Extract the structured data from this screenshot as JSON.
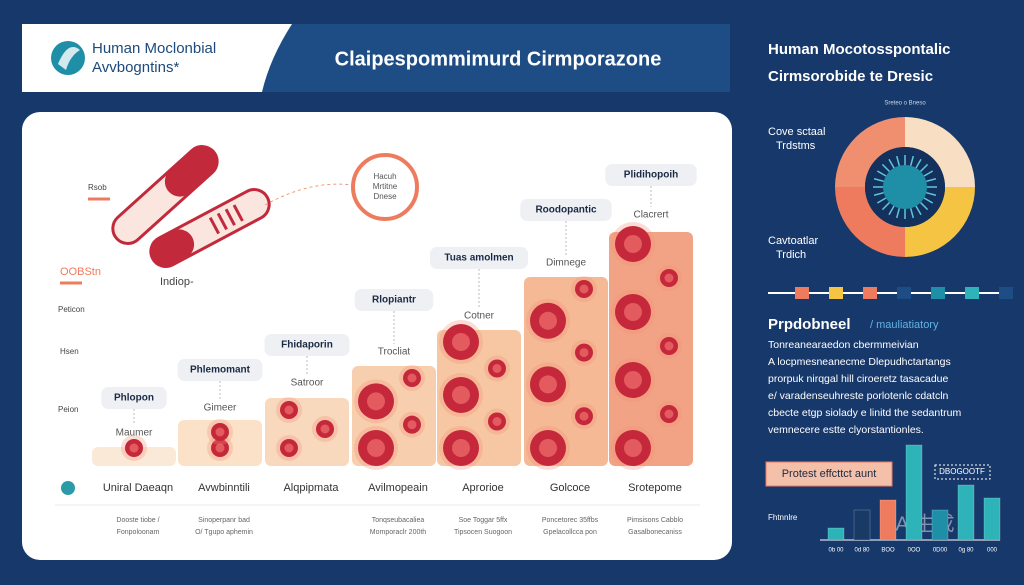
{
  "header": {
    "logo_line1": "Human Moclonbial",
    "logo_line2": "Avvbogntins*",
    "title": "Claipespommimurd Cirmporazone"
  },
  "panel": {
    "side_labels": [
      "Rsob",
      "OOBStn",
      "Indiop-",
      "Peticon",
      "Hsen",
      "Peion"
    ],
    "circle_label": [
      "Hacuh",
      "Mrtitne",
      "Dnese"
    ],
    "columns": [
      {
        "label": "Phlopon",
        "sub": "Maumer",
        "category": "Uniral Daeaqn",
        "note": [
          "Dooste tiobe /",
          "Fonpoloonam"
        ]
      },
      {
        "label": "Phlemomant",
        "sub": "Gimeer",
        "category": "Avwbinntili",
        "note": [
          "Sinoperpanr bad",
          "O/ Tgupo aphemin"
        ]
      },
      {
        "label": "Fhidaporin",
        "sub": "Satroor",
        "category": "Alqpipmata",
        "note": [
          "",
          ""
        ]
      },
      {
        "label": "Rlopiantr",
        "sub": "Trocliat",
        "category": "Avilmopeain",
        "note": [
          "Tonqseubacaliea",
          "Momporaclr 200th"
        ]
      },
      {
        "label": "Tuas amolmen",
        "sub": "Cotner",
        "category": "Aprorioe",
        "note": [
          "Soe Toggar 5ffx",
          "Tipsocen Suogoon"
        ]
      },
      {
        "label": "Roodopantic",
        "sub": "Dimnege",
        "category": "Golcoce",
        "note": [
          "Poncetorec 35ffbs",
          "Gpelacollcca pon"
        ]
      },
      {
        "label": "Plidihopoih",
        "sub": "Clacrert",
        "category": "Srotepome",
        "note": [
          "Pimsisons Cabblo",
          "Gasalbonecaniss"
        ]
      }
    ]
  },
  "side": {
    "title": [
      "Human Mocotosspontalic",
      "Cirmsorobide te Dresic"
    ],
    "donut_top": "Sreteo o Bneso",
    "donut_label1": [
      "Cove sctaal",
      "Trdstms"
    ],
    "donut_label2": [
      "Cavtoatlar",
      "Trdich"
    ],
    "section_title": "Prpdobneel",
    "section_tag": "/ mauliatiatory",
    "paragraph": [
      "Tonreanearaedon cbermmeivian",
      "A locpmesneanecme Dlepudhctartangs",
      "prorpuk nirqgal hill ciroeretz tasacadue",
      "e/ varadenseuhreste porlotenlc cdatcln",
      "cbecte etgp siolady e linitd the sedantrum",
      "vemnecere estte clyorstantionles."
    ],
    "box_label": "Protest effcttct aunt",
    "legend_box": "DBOGOOTF",
    "axis_label": "Fhtnnlre",
    "bar_labels": [
      "0b 00",
      "0d 80",
      "BOO",
      "0OO",
      "0D00",
      "0g 80",
      "000"
    ],
    "watermark": "AI生成"
  }
}
